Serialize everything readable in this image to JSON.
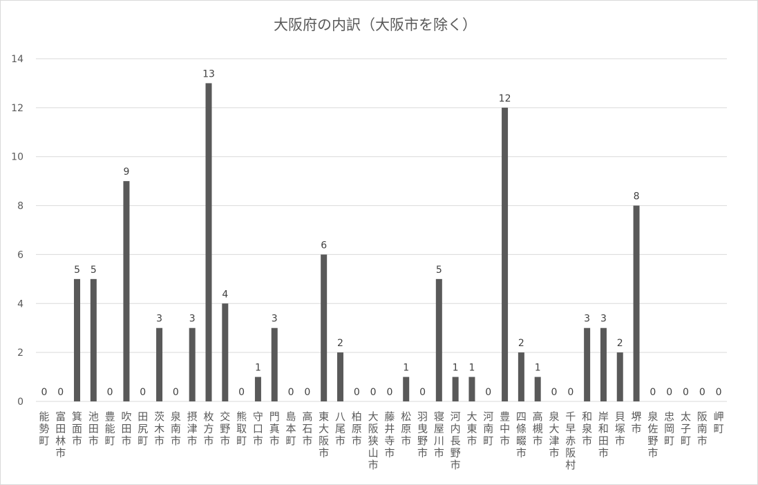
{
  "chart_data": {
    "type": "bar",
    "title": "大阪府の内訳（大阪市を除く）",
    "xlabel": "",
    "ylabel": "",
    "ylim": [
      0,
      14
    ],
    "yticks": [
      0,
      2,
      4,
      6,
      8,
      10,
      12,
      14
    ],
    "grid": true,
    "legend": "none",
    "bar_color": "#595959",
    "grid_color": "#d9d9d9",
    "text_color": "#595959",
    "categories": [
      "能勢町",
      "富田林市",
      "箕面市",
      "池田市",
      "豊能町",
      "吹田市",
      "田尻町",
      "茨木市",
      "泉南市",
      "摂津市",
      "枚方市",
      "交野市",
      "熊取町",
      "守口市",
      "門真市",
      "島本町",
      "高石市",
      "東大阪市",
      "八尾市",
      "柏原市",
      "大阪狭山市",
      "藤井寺市",
      "松原市",
      "羽曳野市",
      "寝屋川市",
      "河内長野市",
      "大東市",
      "河南町",
      "豊中市",
      "四條畷市",
      "高槻市",
      "泉大津市",
      "千早赤阪村",
      "和泉市",
      "岸和田市",
      "貝塚市",
      "堺市",
      "泉佐野市",
      "忠岡町",
      "太子町",
      "阪南市",
      "岬町"
    ],
    "values": [
      0,
      0,
      5,
      5,
      0,
      9,
      0,
      3,
      0,
      3,
      13,
      4,
      0,
      1,
      3,
      0,
      0,
      6,
      2,
      0,
      0,
      0,
      1,
      0,
      5,
      1,
      1,
      0,
      12,
      2,
      1,
      0,
      0,
      3,
      3,
      2,
      8,
      0,
      0,
      0,
      0,
      0
    ]
  }
}
